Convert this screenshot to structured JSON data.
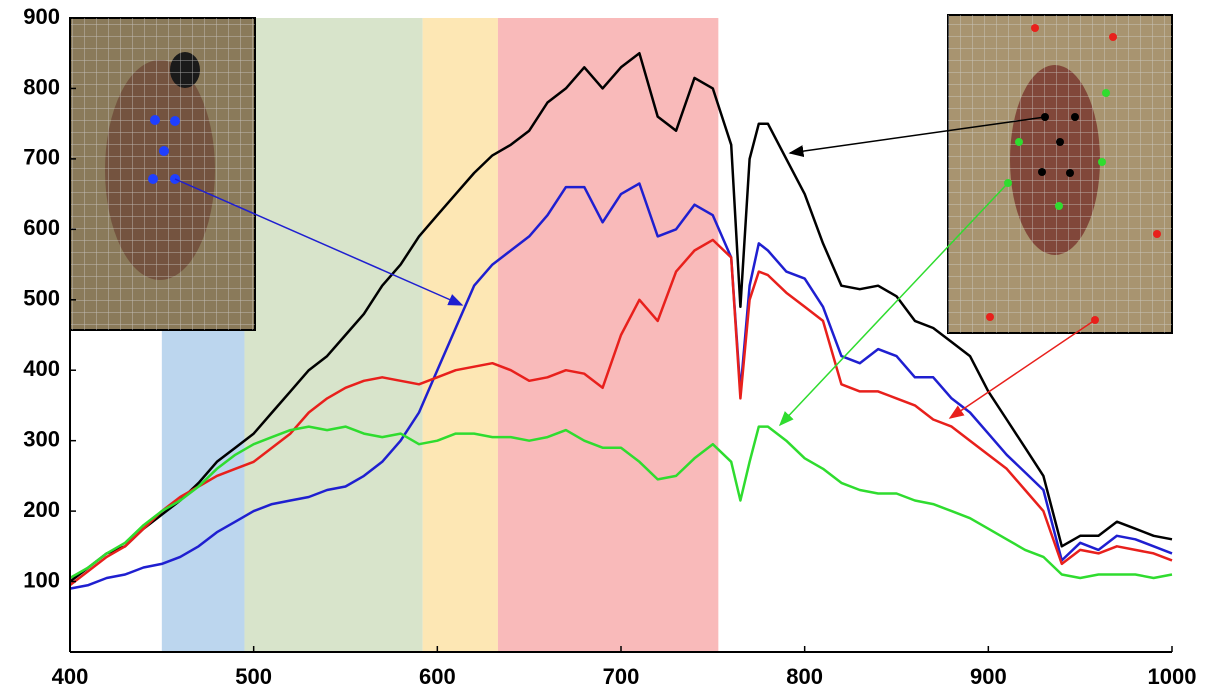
{
  "chart_data": {
    "type": "line",
    "x": [
      400,
      410,
      420,
      430,
      440,
      450,
      460,
      470,
      480,
      490,
      500,
      510,
      520,
      530,
      540,
      550,
      560,
      570,
      580,
      590,
      600,
      610,
      620,
      630,
      640,
      650,
      660,
      670,
      680,
      690,
      700,
      710,
      720,
      730,
      740,
      750,
      760,
      765,
      770,
      775,
      780,
      790,
      800,
      810,
      820,
      830,
      840,
      850,
      860,
      870,
      880,
      890,
      900,
      910,
      920,
      930,
      940,
      950,
      960,
      970,
      980,
      990,
      1000
    ],
    "series": [
      {
        "color": "#000000",
        "values": [
          100,
          120,
          140,
          150,
          175,
          195,
          215,
          240,
          270,
          290,
          310,
          340,
          370,
          400,
          420,
          450,
          480,
          520,
          550,
          590,
          620,
          650,
          680,
          705,
          720,
          740,
          780,
          800,
          830,
          800,
          830,
          850,
          760,
          740,
          815,
          800,
          720,
          490,
          700,
          750,
          750,
          700,
          650,
          580,
          520,
          515,
          520,
          505,
          470,
          460,
          440,
          420,
          370,
          330,
          290,
          250,
          150,
          165,
          165,
          185,
          175,
          165,
          160
        ]
      },
      {
        "color": "#1f1fd0",
        "values": [
          90,
          95,
          105,
          110,
          120,
          125,
          135,
          150,
          170,
          185,
          200,
          210,
          215,
          220,
          230,
          235,
          250,
          270,
          300,
          340,
          400,
          460,
          520,
          550,
          570,
          590,
          620,
          660,
          660,
          610,
          650,
          665,
          590,
          600,
          635,
          620,
          560,
          370,
          520,
          580,
          570,
          540,
          530,
          490,
          420,
          410,
          430,
          420,
          390,
          390,
          360,
          340,
          310,
          280,
          255,
          230,
          130,
          155,
          145,
          165,
          160,
          150,
          140
        ]
      },
      {
        "color": "#e8201c",
        "values": [
          95,
          115,
          135,
          150,
          175,
          200,
          220,
          235,
          250,
          260,
          270,
          290,
          310,
          340,
          360,
          375,
          385,
          390,
          385,
          380,
          390,
          400,
          405,
          410,
          400,
          385,
          390,
          400,
          395,
          375,
          450,
          500,
          470,
          540,
          570,
          585,
          560,
          360,
          500,
          540,
          535,
          510,
          490,
          470,
          380,
          370,
          370,
          360,
          350,
          330,
          320,
          300,
          280,
          260,
          230,
          200,
          125,
          145,
          140,
          150,
          145,
          140,
          130
        ]
      },
      {
        "color": "#2fdc2f",
        "values": [
          105,
          120,
          140,
          155,
          180,
          200,
          215,
          235,
          260,
          280,
          295,
          305,
          315,
          320,
          315,
          320,
          310,
          305,
          310,
          295,
          300,
          310,
          310,
          305,
          305,
          300,
          305,
          315,
          300,
          290,
          290,
          270,
          245,
          250,
          275,
          295,
          270,
          215,
          270,
          320,
          320,
          300,
          275,
          260,
          240,
          230,
          225,
          225,
          215,
          210,
          200,
          190,
          175,
          160,
          145,
          135,
          110,
          105,
          110,
          110,
          110,
          105,
          110
        ]
      }
    ],
    "bands": [
      {
        "range": [
          450,
          495
        ],
        "color": "#bcd6ee"
      },
      {
        "range": [
          495,
          592
        ],
        "color": "#d8e4cb"
      },
      {
        "range": [
          592,
          633
        ],
        "color": "#fde7b4"
      },
      {
        "range": [
          633,
          753
        ],
        "color": "#f9baba"
      }
    ],
    "xlim": [
      400,
      1000
    ],
    "xticks": [
      400,
      500,
      600,
      700,
      800,
      900,
      1000
    ],
    "ylim": [
      0,
      900
    ],
    "yticks": [
      100,
      200,
      300,
      400,
      500,
      600,
      700,
      800,
      900
    ]
  }
}
